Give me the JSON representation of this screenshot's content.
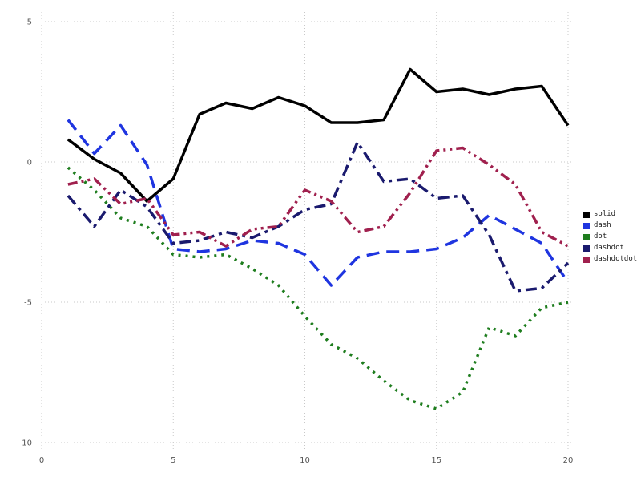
{
  "chart_data": {
    "type": "line",
    "title": "",
    "xlabel": "",
    "ylabel": "",
    "xlim": [
      0,
      20
    ],
    "ylim": [
      -10,
      5
    ],
    "x_ticks": [
      0,
      5,
      10,
      15,
      20
    ],
    "y_ticks": [
      -10,
      -5,
      0,
      5
    ],
    "grid": "dotted",
    "grid_color": "#c8c8c8",
    "legend_position": "right",
    "x": [
      1,
      2,
      3,
      4,
      5,
      6,
      7,
      8,
      9,
      10,
      11,
      12,
      13,
      14,
      15,
      16,
      17,
      18,
      19,
      20
    ],
    "series": [
      {
        "name": "solid",
        "color": "#000000",
        "dash": "",
        "values": [
          0.8,
          0.1,
          -0.4,
          -1.4,
          -0.6,
          1.7,
          2.1,
          1.9,
          2.3,
          2.0,
          1.4,
          1.4,
          1.5,
          3.3,
          2.5,
          2.6,
          2.4,
          2.6,
          2.7,
          1.3
        ]
      },
      {
        "name": "dash",
        "color": "#1f35e0",
        "dash": "16,9",
        "values": [
          1.5,
          0.3,
          1.3,
          -0.1,
          -3.1,
          -3.2,
          -3.1,
          -2.8,
          -2.9,
          -3.3,
          -4.4,
          -3.4,
          -3.2,
          -3.2,
          -3.1,
          -2.7,
          -1.9,
          -2.4,
          -2.9,
          -4.3
        ]
      },
      {
        "name": "dot",
        "color": "#1e7d1e",
        "dash": "3,6",
        "values": [
          -0.2,
          -1.0,
          -2.0,
          -2.3,
          -3.3,
          -3.4,
          -3.3,
          -3.8,
          -4.4,
          -5.5,
          -6.5,
          -7.0,
          -7.8,
          -8.5,
          -8.8,
          -8.2,
          -5.9,
          -6.2,
          -5.2,
          -5.0
        ]
      },
      {
        "name": "dashdot",
        "color": "#1a1a6e",
        "dash": "14,6,4,6",
        "values": [
          -1.2,
          -2.3,
          -1.0,
          -1.6,
          -2.9,
          -2.8,
          -2.5,
          -2.7,
          -2.3,
          -1.7,
          -1.5,
          0.7,
          -0.7,
          -0.6,
          -1.3,
          -1.2,
          -2.6,
          -4.6,
          -4.5,
          -3.6
        ]
      },
      {
        "name": "dashdotdot",
        "color": "#a0204e",
        "dash": "12,5,3,5,3,5",
        "values": [
          -0.8,
          -0.6,
          -1.5,
          -1.3,
          -2.6,
          -2.5,
          -3.0,
          -2.4,
          -2.3,
          -1.0,
          -1.4,
          -2.5,
          -2.3,
          -1.1,
          0.4,
          0.5,
          -0.1,
          -0.8,
          -2.5,
          -3.0
        ]
      }
    ],
    "legend_labels": [
      "solid",
      "dash",
      "dot",
      "dashdot",
      "dashdotdot"
    ]
  }
}
